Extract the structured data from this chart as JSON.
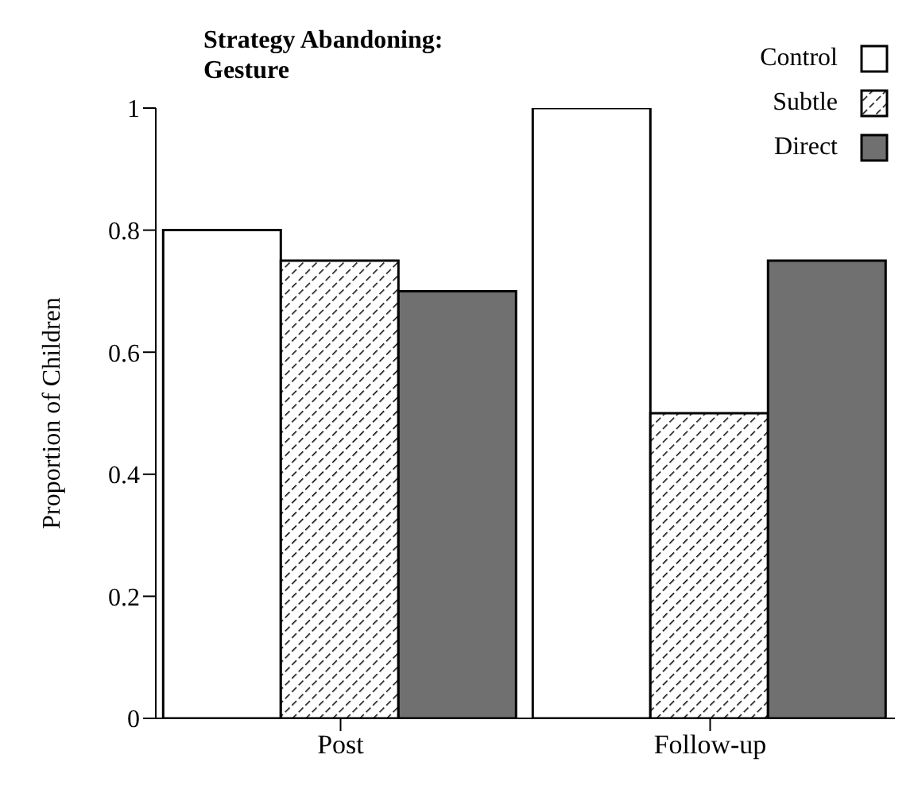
{
  "chart_data": {
    "type": "bar",
    "title": "Strategy Abandoning: Gesture",
    "ylabel": "Proportion of Children",
    "categories": [
      "Post",
      "Follow-up"
    ],
    "series": [
      {
        "name": "Control",
        "color": "#ffffff",
        "values": [
          0.8,
          1.0
        ]
      },
      {
        "name": "Subtle",
        "color": "#000000",
        "values": [
          0.75,
          0.5
        ]
      },
      {
        "name": "Direct",
        "color": "#707070",
        "values": [
          0.7,
          0.75
        ]
      }
    ],
    "ylim": [
      0,
      1
    ],
    "yticks": [
      0,
      0.2,
      0.4,
      0.6,
      0.8,
      {
        "value": 1,
        "label": "1"
      }
    ],
    "grid": false,
    "legend": "top right"
  }
}
